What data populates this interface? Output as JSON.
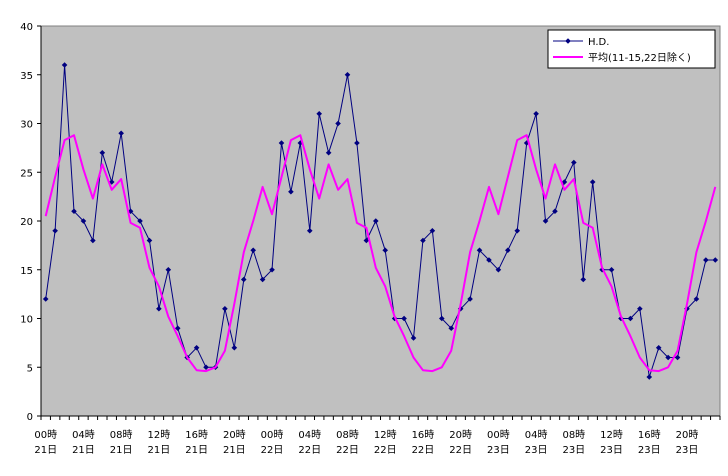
{
  "chart_data": {
    "type": "line",
    "ylim": [
      0,
      40
    ],
    "yticks": [
      0,
      5,
      10,
      15,
      20,
      25,
      30,
      35,
      40
    ],
    "grid": false,
    "legend_position": "top-right",
    "plot_background": "#c0c0c0",
    "x_tick_labels": [
      {
        "hour": "00時",
        "day": "21日"
      },
      {
        "hour": "04時",
        "day": "21日"
      },
      {
        "hour": "08時",
        "day": "21日"
      },
      {
        "hour": "12時",
        "day": "21日"
      },
      {
        "hour": "16時",
        "day": "21日"
      },
      {
        "hour": "20時",
        "day": "21日"
      },
      {
        "hour": "00時",
        "day": "22日"
      },
      {
        "hour": "04時",
        "day": "22日"
      },
      {
        "hour": "08時",
        "day": "22日"
      },
      {
        "hour": "12時",
        "day": "22日"
      },
      {
        "hour": "16時",
        "day": "22日"
      },
      {
        "hour": "20時",
        "day": "22日"
      },
      {
        "hour": "00時",
        "day": "23日"
      },
      {
        "hour": "04時",
        "day": "23日"
      },
      {
        "hour": "08時",
        "day": "23日"
      },
      {
        "hour": "12時",
        "day": "23日"
      },
      {
        "hour": "16時",
        "day": "23日"
      },
      {
        "hour": "20時",
        "day": "23日"
      }
    ],
    "series": [
      {
        "name": "H.D.",
        "color": "#000080",
        "marker": "diamond",
        "values": [
          12,
          19,
          36,
          21,
          20,
          18,
          27,
          24,
          29,
          21,
          20,
          18,
          11,
          15,
          9,
          6,
          7,
          5,
          5,
          11,
          7,
          14,
          17,
          14,
          15,
          28,
          23,
          28,
          19,
          31,
          27,
          30,
          35,
          28,
          18,
          20,
          17,
          10,
          10,
          8,
          18,
          19,
          10,
          9,
          11,
          12,
          17,
          16,
          15,
          17,
          19,
          28,
          31,
          20,
          21,
          24,
          26,
          14,
          24,
          15,
          15,
          10,
          10,
          11,
          4,
          7,
          6,
          6,
          11,
          12,
          16,
          16
        ]
      },
      {
        "name": "平均(11-15,22日除く)",
        "color": "#ff00ff",
        "marker": "none",
        "values": [
          20.5,
          24.5,
          28.3,
          28.8,
          25.3,
          22.3,
          25.8,
          23.2,
          24.3,
          19.8,
          19.3,
          15.2,
          13.3,
          10.2,
          8.2,
          6.0,
          4.7,
          4.6,
          5.0,
          6.7,
          11.5,
          16.8,
          20.0,
          23.5,
          20.7,
          24.5,
          28.3,
          28.8,
          25.3,
          22.3,
          25.8,
          23.2,
          24.3,
          19.8,
          19.3,
          15.2,
          13.3,
          10.2,
          8.2,
          6.0,
          4.7,
          4.6,
          5.0,
          6.7,
          11.5,
          16.8,
          20.0,
          23.5,
          20.7,
          24.5,
          28.3,
          28.8,
          25.3,
          22.3,
          25.8,
          23.2,
          24.3,
          19.8,
          19.3,
          15.2,
          13.3,
          10.2,
          8.2,
          6.0,
          4.7,
          4.6,
          5.0,
          6.7,
          11.5,
          16.8,
          20.0,
          23.5
        ]
      }
    ]
  }
}
